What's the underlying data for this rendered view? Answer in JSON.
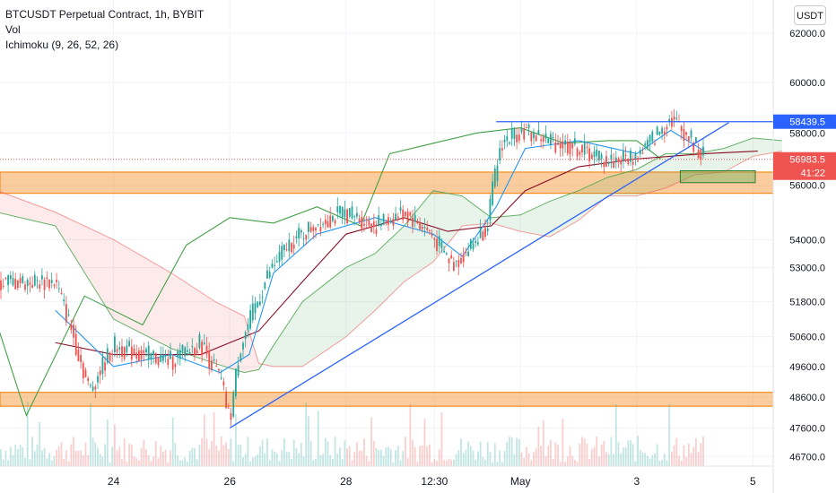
{
  "legend": {
    "title": "BTCUSDT Perpetual Contract, 1h, BYBIT",
    "vol": "Vol",
    "ichimoku": "Ichimoku (9, 26, 52, 26)"
  },
  "currency_button": "USDT",
  "colors": {
    "up": "#26a69a",
    "down": "#ef5350",
    "tenkan": "#2196f3",
    "kijun": "#880e25",
    "chikou": "#43a047",
    "cloud_bull": "#43a047",
    "cloud_bear": "#ef5350",
    "zone": "#f57c00",
    "trendline": "#2962ff"
  },
  "chart_data": {
    "type": "candlestick",
    "y_scale": "logarithmic",
    "ylim": [
      46400,
      63400
    ],
    "y_ticks": [
      "62000.0",
      "60000.0",
      "58000.0",
      "56000.0",
      "54000.0",
      "53000.0",
      "51800.0",
      "50600.0",
      "49600.0",
      "48600.0",
      "47600.0",
      "46700.0"
    ],
    "x_ticks": [
      "24",
      "26",
      "28",
      "12:30",
      "May",
      "3",
      "5"
    ],
    "price_labels": [
      {
        "text": "58439.5",
        "value": 58439.5,
        "color": "#2962ff"
      },
      {
        "text": "56983.5",
        "value": 56983.5,
        "color": "#ef5350"
      },
      {
        "text": "41:22",
        "value": 56983.5,
        "color": "#ef5350"
      }
    ],
    "horizontal_zones": [
      {
        "from": 55700,
        "to": 56500,
        "color": "#f57c00"
      },
      {
        "from": 48300,
        "to": 48750,
        "color": "#f57c00"
      }
    ],
    "target_box": {
      "from": 56100,
      "to": 56550,
      "x_from": "2021-05-03 18:00",
      "x_to": "2021-05-06 00:00",
      "color": "#4caf50"
    },
    "resistance_line": {
      "value": 58439.5,
      "x_from": "2021-04-30 14:00",
      "x_to": "end"
    },
    "trendline": [
      {
        "x": "2021-04-26 00:00",
        "y": 47600
      },
      {
        "x": "2021-05-04 14:00",
        "y": 58400
      }
    ],
    "last_price": 56983.5,
    "price_path": [
      {
        "x": "2021-04-23 00:00",
        "y": 52500
      },
      {
        "x": "2021-04-23 06:00",
        "y": 51000
      },
      {
        "x": "2021-04-23 14:00",
        "y": 48800
      },
      {
        "x": "2021-04-24 00:00",
        "y": 50300
      },
      {
        "x": "2021-04-24 12:00",
        "y": 50000
      },
      {
        "x": "2021-04-25 00:00",
        "y": 49800
      },
      {
        "x": "2021-04-25 12:00",
        "y": 50400
      },
      {
        "x": "2021-04-25 20:00",
        "y": 49200
      },
      {
        "x": "2021-04-26 00:00",
        "y": 47800
      },
      {
        "x": "2021-04-26 04:00",
        "y": 50200
      },
      {
        "x": "2021-04-26 16:00",
        "y": 52800
      },
      {
        "x": "2021-04-27 00:00",
        "y": 53800
      },
      {
        "x": "2021-04-27 12:00",
        "y": 54600
      },
      {
        "x": "2021-04-28 00:00",
        "y": 55000
      },
      {
        "x": "2021-04-28 12:00",
        "y": 54500
      },
      {
        "x": "2021-04-29 00:00",
        "y": 55000
      },
      {
        "x": "2021-04-29 10:00",
        "y": 54300
      },
      {
        "x": "2021-04-29 20:00",
        "y": 53100
      },
      {
        "x": "2021-04-30 02:00",
        "y": 53600
      },
      {
        "x": "2021-04-30 10:00",
        "y": 54500
      },
      {
        "x": "2021-04-30 16:00",
        "y": 57600
      },
      {
        "x": "2021-05-01 00:00",
        "y": 58100
      },
      {
        "x": "2021-05-01 12:00",
        "y": 57700
      },
      {
        "x": "2021-05-02 00:00",
        "y": 57400
      },
      {
        "x": "2021-05-02 12:00",
        "y": 56900
      },
      {
        "x": "2021-05-03 00:00",
        "y": 57100
      },
      {
        "x": "2021-05-03 08:00",
        "y": 57900
      },
      {
        "x": "2021-05-03 14:00",
        "y": 58600
      },
      {
        "x": "2021-05-03 22:00",
        "y": 57800
      },
      {
        "x": "2021-05-04 04:00",
        "y": 57000
      }
    ],
    "ichimoku": {
      "tenkan": [
        {
          "x": "2021-04-23 00:00",
          "y": 51500
        },
        {
          "x": "2021-04-24 00:00",
          "y": 49600
        },
        {
          "x": "2021-04-25 00:00",
          "y": 50000
        },
        {
          "x": "2021-04-25 20:00",
          "y": 49400
        },
        {
          "x": "2021-04-26 08:00",
          "y": 50000
        },
        {
          "x": "2021-04-26 18:00",
          "y": 52800
        },
        {
          "x": "2021-04-27 12:00",
          "y": 54200
        },
        {
          "x": "2021-04-28 12:00",
          "y": 54800
        },
        {
          "x": "2021-04-29 12:00",
          "y": 54200
        },
        {
          "x": "2021-04-30 00:00",
          "y": 53400
        },
        {
          "x": "2021-04-30 14:00",
          "y": 55200
        },
        {
          "x": "2021-05-01 02:00",
          "y": 57400
        },
        {
          "x": "2021-05-02 00:00",
          "y": 57700
        },
        {
          "x": "2021-05-03 00:00",
          "y": 57200
        },
        {
          "x": "2021-05-03 14:00",
          "y": 58100
        },
        {
          "x": "2021-05-04 04:00",
          "y": 57300
        }
      ],
      "kijun": [
        {
          "x": "2021-04-23 00:00",
          "y": 50400
        },
        {
          "x": "2021-04-24 00:00",
          "y": 50000
        },
        {
          "x": "2021-04-25 12:00",
          "y": 50000
        },
        {
          "x": "2021-04-26 12:00",
          "y": 50800
        },
        {
          "x": "2021-04-27 06:00",
          "y": 52500
        },
        {
          "x": "2021-04-28 00:00",
          "y": 54200
        },
        {
          "x": "2021-04-29 00:00",
          "y": 54800
        },
        {
          "x": "2021-04-29 18:00",
          "y": 54300
        },
        {
          "x": "2021-04-30 12:00",
          "y": 54500
        },
        {
          "x": "2021-05-01 02:00",
          "y": 55800
        },
        {
          "x": "2021-05-02 00:00",
          "y": 56700
        },
        {
          "x": "2021-05-03 00:00",
          "y": 57000
        },
        {
          "x": "2021-05-04 04:00",
          "y": 57200
        },
        {
          "x": "2021-05-05 02:00",
          "y": 57300
        }
      ],
      "chikou": [
        {
          "x": "2021-04-22 00:00",
          "y": 51000
        },
        {
          "x": "2021-04-22 12:00",
          "y": 48000
        },
        {
          "x": "2021-04-23 12:00",
          "y": 52000
        },
        {
          "x": "2021-04-24 12:00",
          "y": 51000
        },
        {
          "x": "2021-04-25 06:00",
          "y": 53800
        },
        {
          "x": "2021-04-26 00:00",
          "y": 54800
        },
        {
          "x": "2021-04-26 18:00",
          "y": 54600
        },
        {
          "x": "2021-04-27 12:00",
          "y": 55200
        },
        {
          "x": "2021-04-28 06:00",
          "y": 54500
        },
        {
          "x": "2021-04-28 18:00",
          "y": 57200
        },
        {
          "x": "2021-04-29 12:00",
          "y": 57600
        },
        {
          "x": "2021-04-30 06:00",
          "y": 58000
        },
        {
          "x": "2021-05-01 00:00",
          "y": 58200
        },
        {
          "x": "2021-05-01 18:00",
          "y": 57600
        },
        {
          "x": "2021-05-02 12:00",
          "y": 57700
        },
        {
          "x": "2021-05-03 00:00",
          "y": 57700
        },
        {
          "x": "2021-05-03 10:00",
          "y": 57000
        }
      ],
      "cloud": [
        {
          "x": "2021-04-22 00:00",
          "a": 55000,
          "b": 55800
        },
        {
          "x": "2021-04-23 00:00",
          "a": 54500,
          "b": 55000
        },
        {
          "x": "2021-04-24 00:00",
          "a": 51200,
          "b": 54000
        },
        {
          "x": "2021-04-25 00:00",
          "a": 50200,
          "b": 52800
        },
        {
          "x": "2021-04-25 18:00",
          "a": 49700,
          "b": 51800
        },
        {
          "x": "2021-04-26 06:00",
          "a": 49400,
          "b": 51300
        },
        {
          "x": "2021-04-26 12:00",
          "a": 49500,
          "b": 49700
        },
        {
          "x": "2021-04-26 18:00",
          "a": 50300,
          "b": 49600
        },
        {
          "x": "2021-04-27 06:00",
          "a": 51800,
          "b": 49600
        },
        {
          "x": "2021-04-28 00:00",
          "a": 53000,
          "b": 50600
        },
        {
          "x": "2021-04-28 12:00",
          "a": 53500,
          "b": 51500
        },
        {
          "x": "2021-04-29 00:00",
          "a": 54500,
          "b": 52500
        },
        {
          "x": "2021-04-29 12:00",
          "a": 55800,
          "b": 53200
        },
        {
          "x": "2021-04-30 00:00",
          "a": 55600,
          "b": 54500
        },
        {
          "x": "2021-04-30 12:00",
          "a": 54800,
          "b": 54600
        },
        {
          "x": "2021-05-01 00:00",
          "a": 54900,
          "b": 54300
        },
        {
          "x": "2021-05-01 12:00",
          "a": 55400,
          "b": 54100
        },
        {
          "x": "2021-05-02 00:00",
          "a": 55800,
          "b": 54700
        },
        {
          "x": "2021-05-02 12:00",
          "a": 56300,
          "b": 55600
        },
        {
          "x": "2021-05-03 00:00",
          "a": 56600,
          "b": 55600
        },
        {
          "x": "2021-05-03 12:00",
          "a": 57200,
          "b": 55900
        },
        {
          "x": "2021-05-04 00:00",
          "a": 57200,
          "b": 56400
        },
        {
          "x": "2021-05-04 12:00",
          "a": 57400,
          "b": 56500
        },
        {
          "x": "2021-05-05 00:00",
          "a": 57800,
          "b": 57100
        },
        {
          "x": "2021-05-05 12:00",
          "a": 57700,
          "b": 57300
        }
      ]
    },
    "volume_level": 0.25
  }
}
